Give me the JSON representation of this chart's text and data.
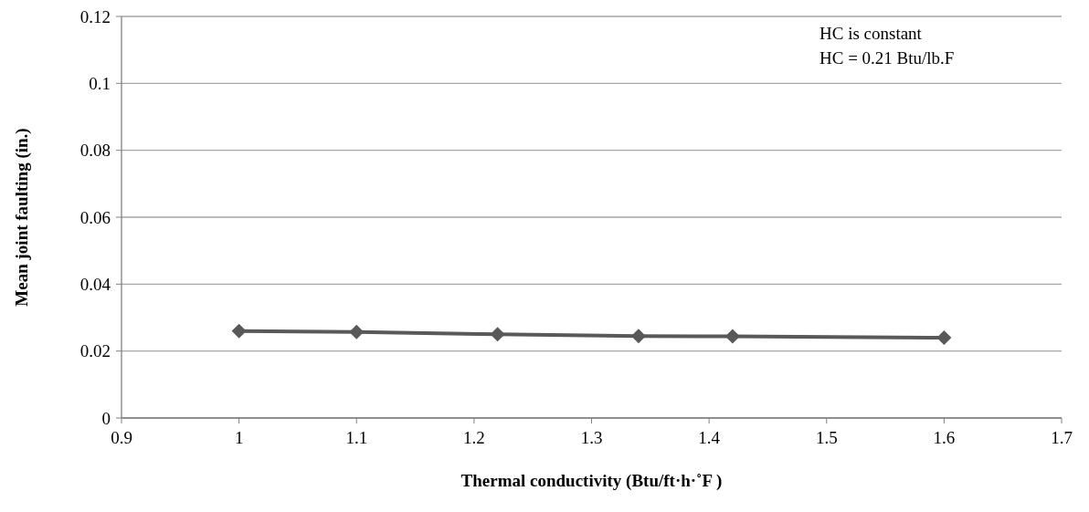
{
  "chart_data": {
    "type": "line",
    "xlabel": "Thermal conductivity (Btu/ft·h·˚F )",
    "ylabel": "Mean joint faulting (in.)",
    "annotations": [
      "HC is constant",
      "HC = 0.21 Btu/lb.F"
    ],
    "x": [
      1,
      1.1,
      1.22,
      1.34,
      1.42,
      1.6
    ],
    "series": [
      {
        "color": "#595959",
        "values": [
          0.026,
          0.0257,
          0.025,
          0.0245,
          0.0244,
          0.024
        ]
      }
    ],
    "xlim": [
      0.9,
      1.7
    ],
    "xticks": [
      0.9,
      1,
      1.1,
      1.2,
      1.3,
      1.4,
      1.5,
      1.6,
      1.7
    ],
    "ylim": [
      0,
      0.12
    ],
    "yticks": [
      0,
      0.02,
      0.04,
      0.06,
      0.08,
      0.1,
      0.12
    ],
    "grid": "y",
    "marker": "diamond",
    "line_style": "solid"
  }
}
